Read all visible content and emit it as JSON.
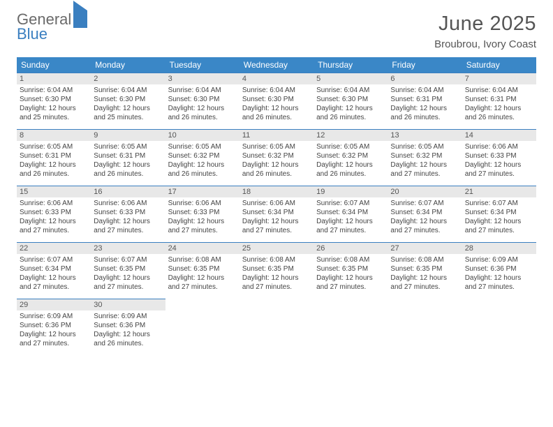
{
  "logo": {
    "line1": "General",
    "line2": "Blue"
  },
  "title": "June 2025",
  "subtitle": "Broubrou, Ivory Coast",
  "columns": [
    "Sunday",
    "Monday",
    "Tuesday",
    "Wednesday",
    "Thursday",
    "Friday",
    "Saturday"
  ],
  "colors": {
    "header_bg": "#3a87c7",
    "header_fg": "#ffffff",
    "daynum_bg": "#e8e8e8",
    "rule": "#3a7fc0",
    "logo_gray": "#6a6a6a",
    "logo_blue": "#3a7fc0"
  },
  "weeks": [
    [
      {
        "n": "1",
        "sr": "Sunrise: 6:04 AM",
        "ss": "Sunset: 6:30 PM",
        "d1": "Daylight: 12 hours",
        "d2": "and 25 minutes."
      },
      {
        "n": "2",
        "sr": "Sunrise: 6:04 AM",
        "ss": "Sunset: 6:30 PM",
        "d1": "Daylight: 12 hours",
        "d2": "and 25 minutes."
      },
      {
        "n": "3",
        "sr": "Sunrise: 6:04 AM",
        "ss": "Sunset: 6:30 PM",
        "d1": "Daylight: 12 hours",
        "d2": "and 26 minutes."
      },
      {
        "n": "4",
        "sr": "Sunrise: 6:04 AM",
        "ss": "Sunset: 6:30 PM",
        "d1": "Daylight: 12 hours",
        "d2": "and 26 minutes."
      },
      {
        "n": "5",
        "sr": "Sunrise: 6:04 AM",
        "ss": "Sunset: 6:30 PM",
        "d1": "Daylight: 12 hours",
        "d2": "and 26 minutes."
      },
      {
        "n": "6",
        "sr": "Sunrise: 6:04 AM",
        "ss": "Sunset: 6:31 PM",
        "d1": "Daylight: 12 hours",
        "d2": "and 26 minutes."
      },
      {
        "n": "7",
        "sr": "Sunrise: 6:04 AM",
        "ss": "Sunset: 6:31 PM",
        "d1": "Daylight: 12 hours",
        "d2": "and 26 minutes."
      }
    ],
    [
      {
        "n": "8",
        "sr": "Sunrise: 6:05 AM",
        "ss": "Sunset: 6:31 PM",
        "d1": "Daylight: 12 hours",
        "d2": "and 26 minutes."
      },
      {
        "n": "9",
        "sr": "Sunrise: 6:05 AM",
        "ss": "Sunset: 6:31 PM",
        "d1": "Daylight: 12 hours",
        "d2": "and 26 minutes."
      },
      {
        "n": "10",
        "sr": "Sunrise: 6:05 AM",
        "ss": "Sunset: 6:32 PM",
        "d1": "Daylight: 12 hours",
        "d2": "and 26 minutes."
      },
      {
        "n": "11",
        "sr": "Sunrise: 6:05 AM",
        "ss": "Sunset: 6:32 PM",
        "d1": "Daylight: 12 hours",
        "d2": "and 26 minutes."
      },
      {
        "n": "12",
        "sr": "Sunrise: 6:05 AM",
        "ss": "Sunset: 6:32 PM",
        "d1": "Daylight: 12 hours",
        "d2": "and 26 minutes."
      },
      {
        "n": "13",
        "sr": "Sunrise: 6:05 AM",
        "ss": "Sunset: 6:32 PM",
        "d1": "Daylight: 12 hours",
        "d2": "and 27 minutes."
      },
      {
        "n": "14",
        "sr": "Sunrise: 6:06 AM",
        "ss": "Sunset: 6:33 PM",
        "d1": "Daylight: 12 hours",
        "d2": "and 27 minutes."
      }
    ],
    [
      {
        "n": "15",
        "sr": "Sunrise: 6:06 AM",
        "ss": "Sunset: 6:33 PM",
        "d1": "Daylight: 12 hours",
        "d2": "and 27 minutes."
      },
      {
        "n": "16",
        "sr": "Sunrise: 6:06 AM",
        "ss": "Sunset: 6:33 PM",
        "d1": "Daylight: 12 hours",
        "d2": "and 27 minutes."
      },
      {
        "n": "17",
        "sr": "Sunrise: 6:06 AM",
        "ss": "Sunset: 6:33 PM",
        "d1": "Daylight: 12 hours",
        "d2": "and 27 minutes."
      },
      {
        "n": "18",
        "sr": "Sunrise: 6:06 AM",
        "ss": "Sunset: 6:34 PM",
        "d1": "Daylight: 12 hours",
        "d2": "and 27 minutes."
      },
      {
        "n": "19",
        "sr": "Sunrise: 6:07 AM",
        "ss": "Sunset: 6:34 PM",
        "d1": "Daylight: 12 hours",
        "d2": "and 27 minutes."
      },
      {
        "n": "20",
        "sr": "Sunrise: 6:07 AM",
        "ss": "Sunset: 6:34 PM",
        "d1": "Daylight: 12 hours",
        "d2": "and 27 minutes."
      },
      {
        "n": "21",
        "sr": "Sunrise: 6:07 AM",
        "ss": "Sunset: 6:34 PM",
        "d1": "Daylight: 12 hours",
        "d2": "and 27 minutes."
      }
    ],
    [
      {
        "n": "22",
        "sr": "Sunrise: 6:07 AM",
        "ss": "Sunset: 6:34 PM",
        "d1": "Daylight: 12 hours",
        "d2": "and 27 minutes."
      },
      {
        "n": "23",
        "sr": "Sunrise: 6:07 AM",
        "ss": "Sunset: 6:35 PM",
        "d1": "Daylight: 12 hours",
        "d2": "and 27 minutes."
      },
      {
        "n": "24",
        "sr": "Sunrise: 6:08 AM",
        "ss": "Sunset: 6:35 PM",
        "d1": "Daylight: 12 hours",
        "d2": "and 27 minutes."
      },
      {
        "n": "25",
        "sr": "Sunrise: 6:08 AM",
        "ss": "Sunset: 6:35 PM",
        "d1": "Daylight: 12 hours",
        "d2": "and 27 minutes."
      },
      {
        "n": "26",
        "sr": "Sunrise: 6:08 AM",
        "ss": "Sunset: 6:35 PM",
        "d1": "Daylight: 12 hours",
        "d2": "and 27 minutes."
      },
      {
        "n": "27",
        "sr": "Sunrise: 6:08 AM",
        "ss": "Sunset: 6:35 PM",
        "d1": "Daylight: 12 hours",
        "d2": "and 27 minutes."
      },
      {
        "n": "28",
        "sr": "Sunrise: 6:09 AM",
        "ss": "Sunset: 6:36 PM",
        "d1": "Daylight: 12 hours",
        "d2": "and 27 minutes."
      }
    ],
    [
      {
        "n": "29",
        "sr": "Sunrise: 6:09 AM",
        "ss": "Sunset: 6:36 PM",
        "d1": "Daylight: 12 hours",
        "d2": "and 27 minutes."
      },
      {
        "n": "30",
        "sr": "Sunrise: 6:09 AM",
        "ss": "Sunset: 6:36 PM",
        "d1": "Daylight: 12 hours",
        "d2": "and 26 minutes."
      },
      null,
      null,
      null,
      null,
      null
    ]
  ]
}
